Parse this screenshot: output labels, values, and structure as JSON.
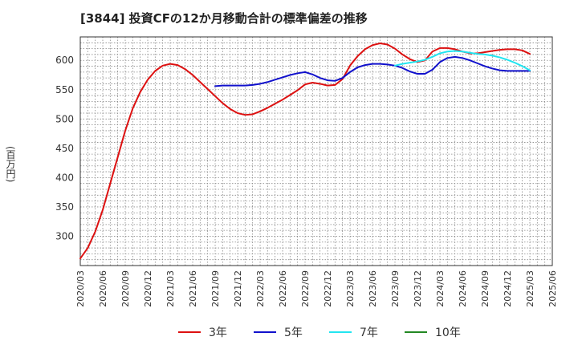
{
  "chart_data": {
    "type": "line",
    "title": "[3844]  投資CFの12か月移動合計の標準偏差の推移",
    "ylabel": "(百万円)",
    "xlabel": "",
    "ylim": [
      250,
      640
    ],
    "yticks": [
      300,
      350,
      400,
      450,
      500,
      550,
      600
    ],
    "xticks": [
      "2020/03",
      "2020/06",
      "2020/09",
      "2020/12",
      "2021/03",
      "2021/06",
      "2021/09",
      "2021/12",
      "2022/03",
      "2022/06",
      "2022/09",
      "2022/12",
      "2023/03",
      "2023/06",
      "2023/09",
      "2023/12",
      "2024/03",
      "2024/06",
      "2024/09",
      "2024/12",
      "2025/03",
      "2025/06"
    ],
    "grid": true,
    "legend_position": "bottom",
    "series": [
      {
        "name": "3年",
        "color": "#dd1111",
        "points": [
          [
            "2020/03",
            262
          ],
          [
            "2020/04",
            280
          ],
          [
            "2020/05",
            308
          ],
          [
            "2020/06",
            345
          ],
          [
            "2020/07",
            390
          ],
          [
            "2020/08",
            435
          ],
          [
            "2020/09",
            480
          ],
          [
            "2020/10",
            518
          ],
          [
            "2020/11",
            546
          ],
          [
            "2020/12",
            567
          ],
          [
            "2021/01",
            582
          ],
          [
            "2021/02",
            591
          ],
          [
            "2021/03",
            594
          ],
          [
            "2021/04",
            592
          ],
          [
            "2021/05",
            585
          ],
          [
            "2021/06",
            575
          ],
          [
            "2021/07",
            563
          ],
          [
            "2021/08",
            551
          ],
          [
            "2021/09",
            539
          ],
          [
            "2021/10",
            527
          ],
          [
            "2021/11",
            517
          ],
          [
            "2021/12",
            510
          ],
          [
            "2022/01",
            507
          ],
          [
            "2022/02",
            508
          ],
          [
            "2022/03",
            513
          ],
          [
            "2022/04",
            519
          ],
          [
            "2022/05",
            526
          ],
          [
            "2022/06",
            533
          ],
          [
            "2022/07",
            541
          ],
          [
            "2022/08",
            549
          ],
          [
            "2022/09",
            559
          ],
          [
            "2022/10",
            562
          ],
          [
            "2022/11",
            560
          ],
          [
            "2022/12",
            557
          ],
          [
            "2023/01",
            558
          ],
          [
            "2023/02",
            568
          ],
          [
            "2023/03",
            591
          ],
          [
            "2023/04",
            607
          ],
          [
            "2023/05",
            619
          ],
          [
            "2023/06",
            626
          ],
          [
            "2023/07",
            629
          ],
          [
            "2023/08",
            627
          ],
          [
            "2023/09",
            620
          ],
          [
            "2023/10",
            610
          ],
          [
            "2023/11",
            602
          ],
          [
            "2023/12",
            597
          ],
          [
            "2024/01",
            600
          ],
          [
            "2024/02",
            615
          ],
          [
            "2024/03",
            621
          ],
          [
            "2024/04",
            621
          ],
          [
            "2024/05",
            619
          ],
          [
            "2024/06",
            615
          ],
          [
            "2024/07",
            612
          ],
          [
            "2024/08",
            612
          ],
          [
            "2024/09",
            614
          ],
          [
            "2024/10",
            616
          ],
          [
            "2024/11",
            618
          ],
          [
            "2024/12",
            619
          ],
          [
            "2025/01",
            619
          ],
          [
            "2025/02",
            617
          ],
          [
            "2025/03",
            611
          ]
        ]
      },
      {
        "name": "5年",
        "color": "#1111cc",
        "points": [
          [
            "2021/09",
            556
          ],
          [
            "2021/10",
            557
          ],
          [
            "2021/11",
            557
          ],
          [
            "2021/12",
            557
          ],
          [
            "2022/01",
            557
          ],
          [
            "2022/02",
            558
          ],
          [
            "2022/03",
            560
          ],
          [
            "2022/04",
            563
          ],
          [
            "2022/05",
            567
          ],
          [
            "2022/06",
            571
          ],
          [
            "2022/07",
            575
          ],
          [
            "2022/08",
            578
          ],
          [
            "2022/09",
            580
          ],
          [
            "2022/10",
            576
          ],
          [
            "2022/11",
            570
          ],
          [
            "2022/12",
            566
          ],
          [
            "2023/01",
            565
          ],
          [
            "2023/02",
            570
          ],
          [
            "2023/03",
            580
          ],
          [
            "2023/04",
            588
          ],
          [
            "2023/05",
            592
          ],
          [
            "2023/06",
            594
          ],
          [
            "2023/07",
            594
          ],
          [
            "2023/08",
            593
          ],
          [
            "2023/09",
            591
          ],
          [
            "2023/10",
            587
          ],
          [
            "2023/11",
            581
          ],
          [
            "2023/12",
            577
          ],
          [
            "2024/01",
            577
          ],
          [
            "2024/02",
            584
          ],
          [
            "2024/03",
            597
          ],
          [
            "2024/04",
            604
          ],
          [
            "2024/05",
            606
          ],
          [
            "2024/06",
            604
          ],
          [
            "2024/07",
            600
          ],
          [
            "2024/08",
            595
          ],
          [
            "2024/09",
            590
          ],
          [
            "2024/10",
            586
          ],
          [
            "2024/11",
            583
          ],
          [
            "2024/12",
            582
          ],
          [
            "2025/01",
            582
          ],
          [
            "2025/02",
            582
          ],
          [
            "2025/03",
            582
          ]
        ]
      },
      {
        "name": "7年",
        "color": "#22e5f0",
        "points": [
          [
            "2023/09",
            591
          ],
          [
            "2023/10",
            594
          ],
          [
            "2023/11",
            596
          ],
          [
            "2023/12",
            598
          ],
          [
            "2024/01",
            601
          ],
          [
            "2024/02",
            606
          ],
          [
            "2024/03",
            612
          ],
          [
            "2024/04",
            615
          ],
          [
            "2024/05",
            616
          ],
          [
            "2024/06",
            615
          ],
          [
            "2024/07",
            613
          ],
          [
            "2024/08",
            611
          ],
          [
            "2024/09",
            610
          ],
          [
            "2024/10",
            608
          ],
          [
            "2024/11",
            605
          ],
          [
            "2024/12",
            601
          ],
          [
            "2025/01",
            596
          ],
          [
            "2025/02",
            590
          ],
          [
            "2025/03",
            583
          ]
        ]
      },
      {
        "name": "10年",
        "color": "#228822",
        "points": []
      }
    ]
  }
}
